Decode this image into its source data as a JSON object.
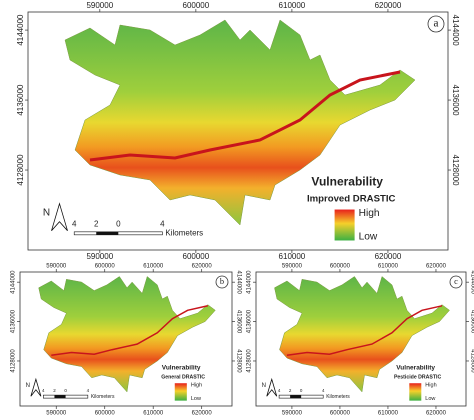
{
  "panels": [
    {
      "label": "a",
      "x_ticks_top": [
        590000,
        600000,
        610000,
        620000
      ],
      "x_ticks_bottom": [
        590000,
        600000,
        610000,
        620000
      ],
      "y_ticks_left": [
        4128000,
        4136000,
        4144000
      ],
      "y_ticks_right": [
        4128000,
        4136000,
        4144000
      ],
      "legend": {
        "title": "Vulnerability",
        "subtitle": "Improved DRASTIC",
        "high": "High",
        "low": "Low"
      },
      "scale_bar": {
        "labels": [
          "4",
          "2",
          "0",
          "4"
        ],
        "unit": "Kilometers"
      },
      "north": "N"
    },
    {
      "label": "b",
      "x_ticks_top": [
        590000,
        600000,
        610000,
        620000
      ],
      "x_ticks_bottom": [
        590000,
        600000,
        610000,
        620000
      ],
      "y_ticks_left": [
        4128000,
        4136000,
        4144000
      ],
      "y_ticks_right": [
        4128000,
        4136000,
        4144000
      ],
      "legend": {
        "title": "Vulnerability",
        "subtitle": "General DRASTIC",
        "high": "High",
        "low": "Low"
      },
      "scale_bar": {
        "labels": [
          "4",
          "2",
          "0",
          "4"
        ],
        "unit": "Kilometers"
      },
      "north": "N"
    },
    {
      "label": "c",
      "x_ticks_top": [
        590000,
        600000,
        610000,
        620000
      ],
      "x_ticks_bottom": [
        590000,
        600000,
        610000,
        620000
      ],
      "y_ticks_left": [
        4128000,
        4136000,
        4144000
      ],
      "y_ticks_right": [
        4128000,
        4136000,
        4144000
      ],
      "legend": {
        "title": "Vulnerability",
        "subtitle": "Pesticide DRASTIC",
        "high": "High",
        "low": "Low"
      },
      "scale_bar": {
        "labels": [
          "4",
          "2",
          "0",
          "4"
        ],
        "unit": "Kilometers"
      },
      "north": "N"
    }
  ]
}
